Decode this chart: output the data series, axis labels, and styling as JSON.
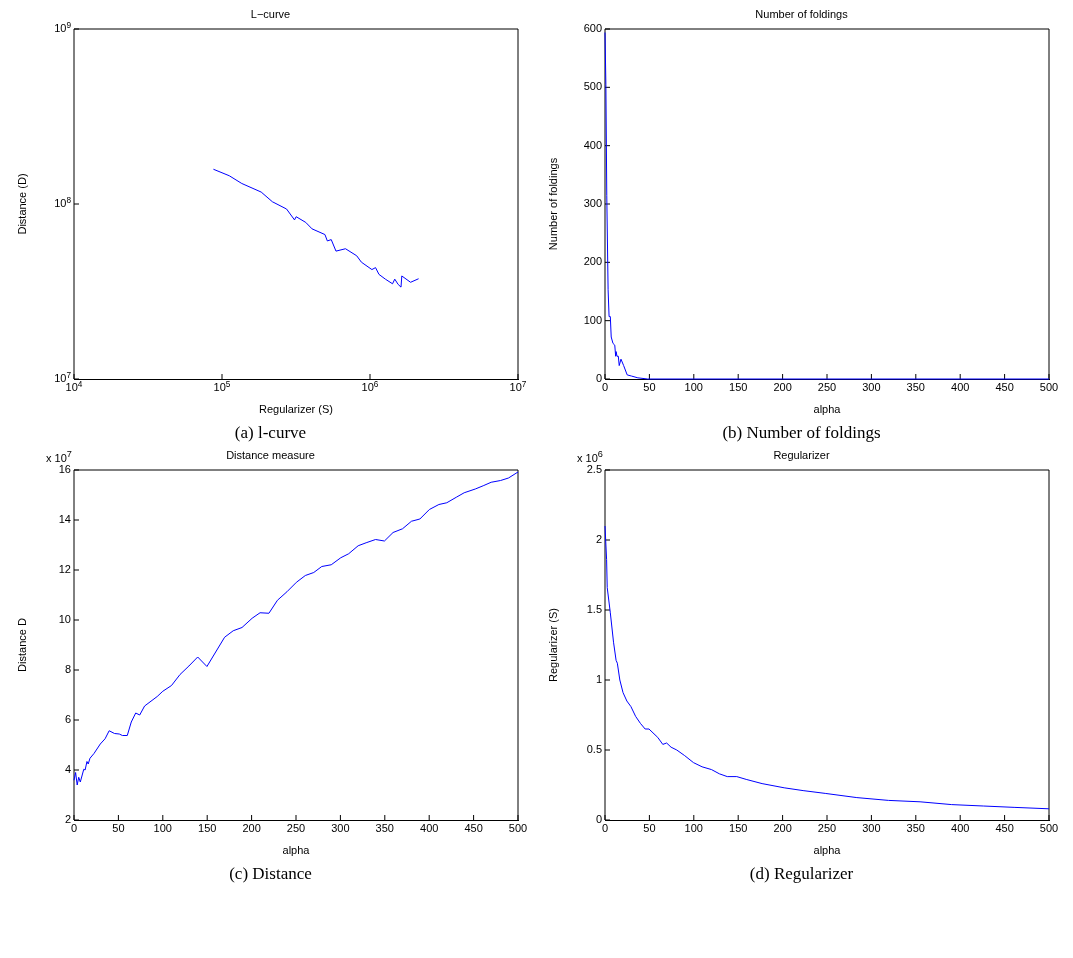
{
  "chart_data": [
    {
      "type": "line",
      "title": "L−curve",
      "xlabel": "Regularizer (S)",
      "ylabel": "Distance (D)",
      "log": "xy",
      "xlim": [
        10000,
        10000000
      ],
      "ylim": [
        10000000,
        1000000000
      ],
      "xticks": [
        {
          "value": 10000,
          "label": "10$^{4}$"
        },
        {
          "value": 100000,
          "label": "10$^{5}$"
        },
        {
          "value": 1000000,
          "label": "10$^{6}$"
        },
        {
          "value": 10000000,
          "label": "10$^{7}$"
        }
      ],
      "yticks": [
        {
          "value": 10000000,
          "label": "10$^{7}$"
        },
        {
          "value": 100000000,
          "label": "10$^{8}$"
        },
        {
          "value": 1000000000,
          "label": "10$^{9}$"
        }
      ],
      "annotations": [
        "(a)  l-curve"
      ],
      "series": [
        {
          "color": "#0000ff",
          "x": [
            87500,
            112000,
            136000,
            184000,
            219000,
            273000,
            309000,
            317000,
            368000,
            406000,
            496000,
            515000,
            547000,
            589000,
            683000,
            813000,
            875000,
            1030000,
            1090000,
            1150000,
            1270000,
            1420000,
            1470000,
            1550000,
            1620000,
            1640000,
            1880000,
            2130000
          ],
          "values": [
            158000000,
            145000000,
            131000000,
            117000000,
            103000000,
            93600000,
            81100000,
            84600000,
            78500000,
            72100000,
            66900000,
            61500000,
            62600000,
            53800000,
            55500000,
            50600000,
            46500000,
            42200000,
            43300000,
            39600000,
            37200000,
            35000000,
            37200000,
            34700000,
            33500000,
            38800000,
            35700000,
            37400000
          ]
        }
      ]
    },
    {
      "type": "line",
      "title": "Number of foldings",
      "xlabel": "alpha",
      "ylabel": "Number of foldings",
      "xlim": [
        0,
        500
      ],
      "ylim": [
        0,
        600
      ],
      "xticks": [
        0,
        50,
        100,
        150,
        200,
        250,
        300,
        350,
        400,
        450,
        500
      ],
      "yticks": [
        0,
        100,
        200,
        300,
        400,
        500,
        600
      ],
      "annotations": [
        "(b)  Number of foldings"
      ],
      "series": [
        {
          "color": "#0000ff",
          "x": [
            0,
            1,
            2,
            3.5,
            4.6,
            6,
            7,
            9,
            11,
            12,
            12.5,
            13.5,
            15,
            16,
            18,
            21,
            25,
            30,
            37,
            48,
            100,
            200,
            300,
            400,
            500
          ],
          "values": [
            594,
            505,
            315,
            153,
            107,
            107,
            72,
            61,
            58,
            39,
            47,
            39,
            39,
            23,
            34,
            23,
            7,
            5,
            2,
            0,
            0,
            0,
            0,
            0,
            0
          ]
        }
      ]
    },
    {
      "type": "line",
      "title": "Distance measure",
      "xlabel": "alpha",
      "ylabel": "Distance D",
      "xlim": [
        0,
        500
      ],
      "ylim": [
        2,
        16
      ],
      "xticks": [
        0,
        50,
        100,
        150,
        200,
        250,
        300,
        350,
        400,
        450,
        500
      ],
      "yticks": [
        2,
        4,
        6,
        8,
        10,
        12,
        14,
        16
      ],
      "annotations": [
        "(c)  Distance",
        "x 10$^{7}$"
      ],
      "series": [
        {
          "color": "#0000ff",
          "x": [
            0,
            1.8,
            3.6,
            5.3,
            7.1,
            11,
            12.5,
            14.6,
            16,
            18,
            22.5,
            29.6,
            35,
            39.6,
            45.6,
            51,
            54.5,
            60,
            64.5,
            69.5,
            74,
            79.5,
            93.7,
            100,
            109.8,
            119.4,
            129.4,
            139.3,
            149.7,
            169.6,
            179.3,
            189.2,
            200.6,
            209.5,
            219.5,
            229.1,
            239.8,
            250.5,
            260.5,
            270,
            279,
            289.7,
            300.4,
            309.3,
            320,
            329,
            339.6,
            349.6,
            359.3,
            370,
            380,
            389.5,
            400.2,
            410.9,
            419.8,
            430.5,
            439.4,
            451.9,
            460.8,
            469.8,
            480.4,
            489.3,
            500
          ],
          "values": [
            3.59,
            3.9,
            3.4,
            3.71,
            3.52,
            4.03,
            4.0,
            4.34,
            4.24,
            4.47,
            4.66,
            5.04,
            5.25,
            5.57,
            5.46,
            5.44,
            5.38,
            5.38,
            5.92,
            6.28,
            6.2,
            6.56,
            6.94,
            7.15,
            7.38,
            7.82,
            8.16,
            8.52,
            8.14,
            9.31,
            9.57,
            9.7,
            10.07,
            10.29,
            10.27,
            10.79,
            11.13,
            11.51,
            11.78,
            11.9,
            12.14,
            12.21,
            12.49,
            12.65,
            12.97,
            13.09,
            13.22,
            13.16,
            13.5,
            13.65,
            13.95,
            14.04,
            14.42,
            14.62,
            14.69,
            14.91,
            15.09,
            15.24,
            15.37,
            15.51,
            15.58,
            15.68,
            15.92
          ]
        }
      ]
    },
    {
      "type": "line",
      "title": "Regularizer",
      "xlabel": "alpha",
      "ylabel": "Regularizer (S)",
      "xlim": [
        0,
        500
      ],
      "ylim": [
        0,
        2.5
      ],
      "xticks": [
        0,
        50,
        100,
        150,
        200,
        250,
        300,
        350,
        400,
        450,
        500
      ],
      "yticks": [
        0,
        0.5,
        1,
        1.5,
        2,
        2.5
      ],
      "annotations": [
        "(d)  Regularizer",
        "x 10$^{6}$"
      ],
      "series": [
        {
          "color": "#0000ff",
          "x": [
            0,
            1.8,
            2.5,
            6,
            9.6,
            12.5,
            13.9,
            16.7,
            20.3,
            24.6,
            29.2,
            34.5,
            39.9,
            45.2,
            49.5,
            59.4,
            65.1,
            69.4,
            74.4,
            80.8,
            89.7,
            99.6,
            109.3,
            120,
            128.8,
            137.7,
            148.4,
            159,
            176.9,
            201.8,
            223.1,
            248,
            283.6,
            319.2,
            354.8,
            390.4,
            426,
            461.6,
            500
          ],
          "values": [
            2.1,
            1.86,
            1.66,
            1.48,
            1.27,
            1.14,
            1.12,
            1.0,
            0.91,
            0.85,
            0.81,
            0.74,
            0.69,
            0.65,
            0.65,
            0.59,
            0.54,
            0.55,
            0.52,
            0.5,
            0.46,
            0.41,
            0.38,
            0.36,
            0.33,
            0.31,
            0.31,
            0.29,
            0.26,
            0.23,
            0.21,
            0.19,
            0.16,
            0.14,
            0.13,
            0.11,
            0.1,
            0.09,
            0.08
          ]
        }
      ]
    }
  ]
}
